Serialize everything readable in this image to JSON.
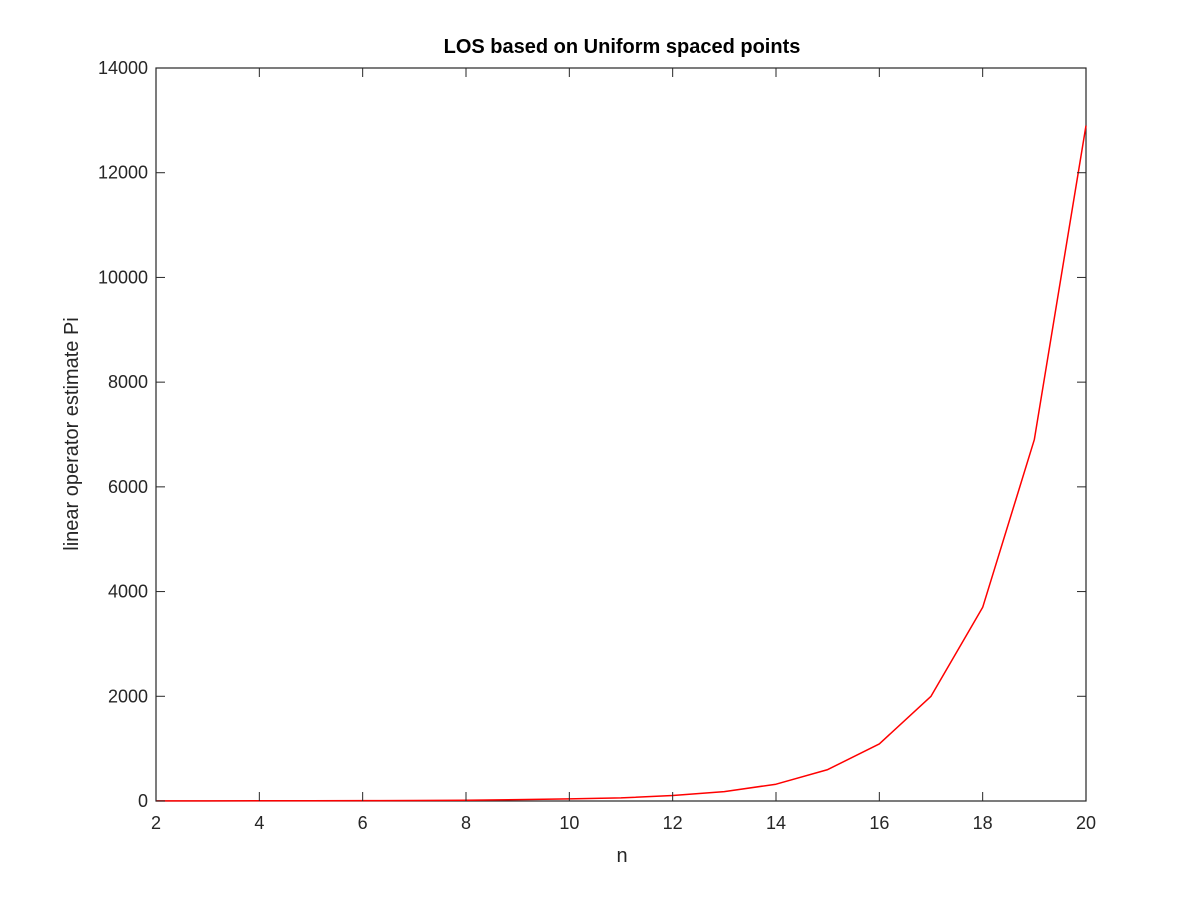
{
  "chart_data": {
    "type": "line",
    "title": "LOS based on Uniform spaced points",
    "xlabel": "n",
    "ylabel": "linear operator estimate Pi",
    "xlim": [
      2,
      20
    ],
    "ylim": [
      0,
      14000
    ],
    "x_ticks": [
      2,
      4,
      6,
      8,
      10,
      12,
      14,
      16,
      18,
      20
    ],
    "y_ticks": [
      0,
      2000,
      4000,
      6000,
      8000,
      10000,
      12000,
      14000
    ],
    "grid": false,
    "line_color": "#ff0000",
    "axis_color": "#262626",
    "series": [
      {
        "x": [
          2,
          3,
          4,
          5,
          6,
          7,
          8,
          9,
          10,
          11,
          12,
          13,
          14,
          15,
          16,
          17,
          18,
          19,
          20
        ],
        "values": [
          1,
          2,
          3,
          5,
          7,
          10,
          16,
          26,
          40,
          60,
          105,
          180,
          320,
          600,
          1090,
          2000,
          3700,
          6900,
          12900
        ]
      }
    ]
  }
}
